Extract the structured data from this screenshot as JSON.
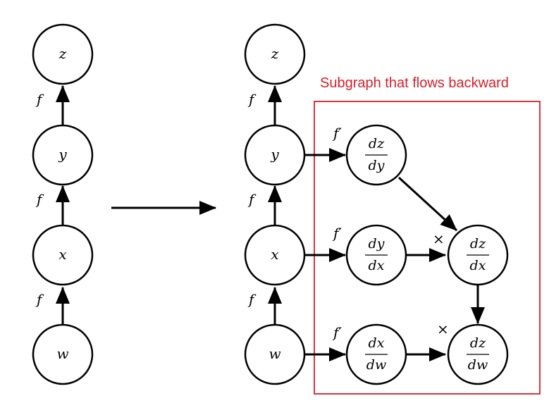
{
  "colors": {
    "highlight": "#d81e2a",
    "stroke": "#000000",
    "background": "#ffffff"
  },
  "left_graph": {
    "nodes": {
      "z": "z",
      "y": "y",
      "x": "x",
      "w": "w"
    },
    "edge_labels": {
      "y_to_z": "f",
      "x_to_y": "f",
      "w_to_x": "f"
    }
  },
  "right_graph": {
    "nodes": {
      "z": "z",
      "y": "y",
      "x": "x",
      "w": "w"
    },
    "edge_labels": {
      "y_to_z": "f",
      "x_to_y": "f",
      "w_to_x": "f",
      "y_to_dzdy": "f′",
      "x_to_dydx": "f′",
      "w_to_dxdw": "f′"
    }
  },
  "subgraph": {
    "caption": "Subgraph that flows backward",
    "nodes": {
      "dz_dy": {
        "num": "dz",
        "den": "dy"
      },
      "dy_dx": {
        "num": "dy",
        "den": "dx"
      },
      "dz_dx": {
        "num": "dz",
        "den": "dx"
      },
      "dx_dw": {
        "num": "dx",
        "den": "dw"
      },
      "dz_dw": {
        "num": "dz",
        "den": "dw"
      }
    },
    "multiply_labels": {
      "into_dz_dx": "×",
      "into_dz_dw": "×"
    }
  }
}
